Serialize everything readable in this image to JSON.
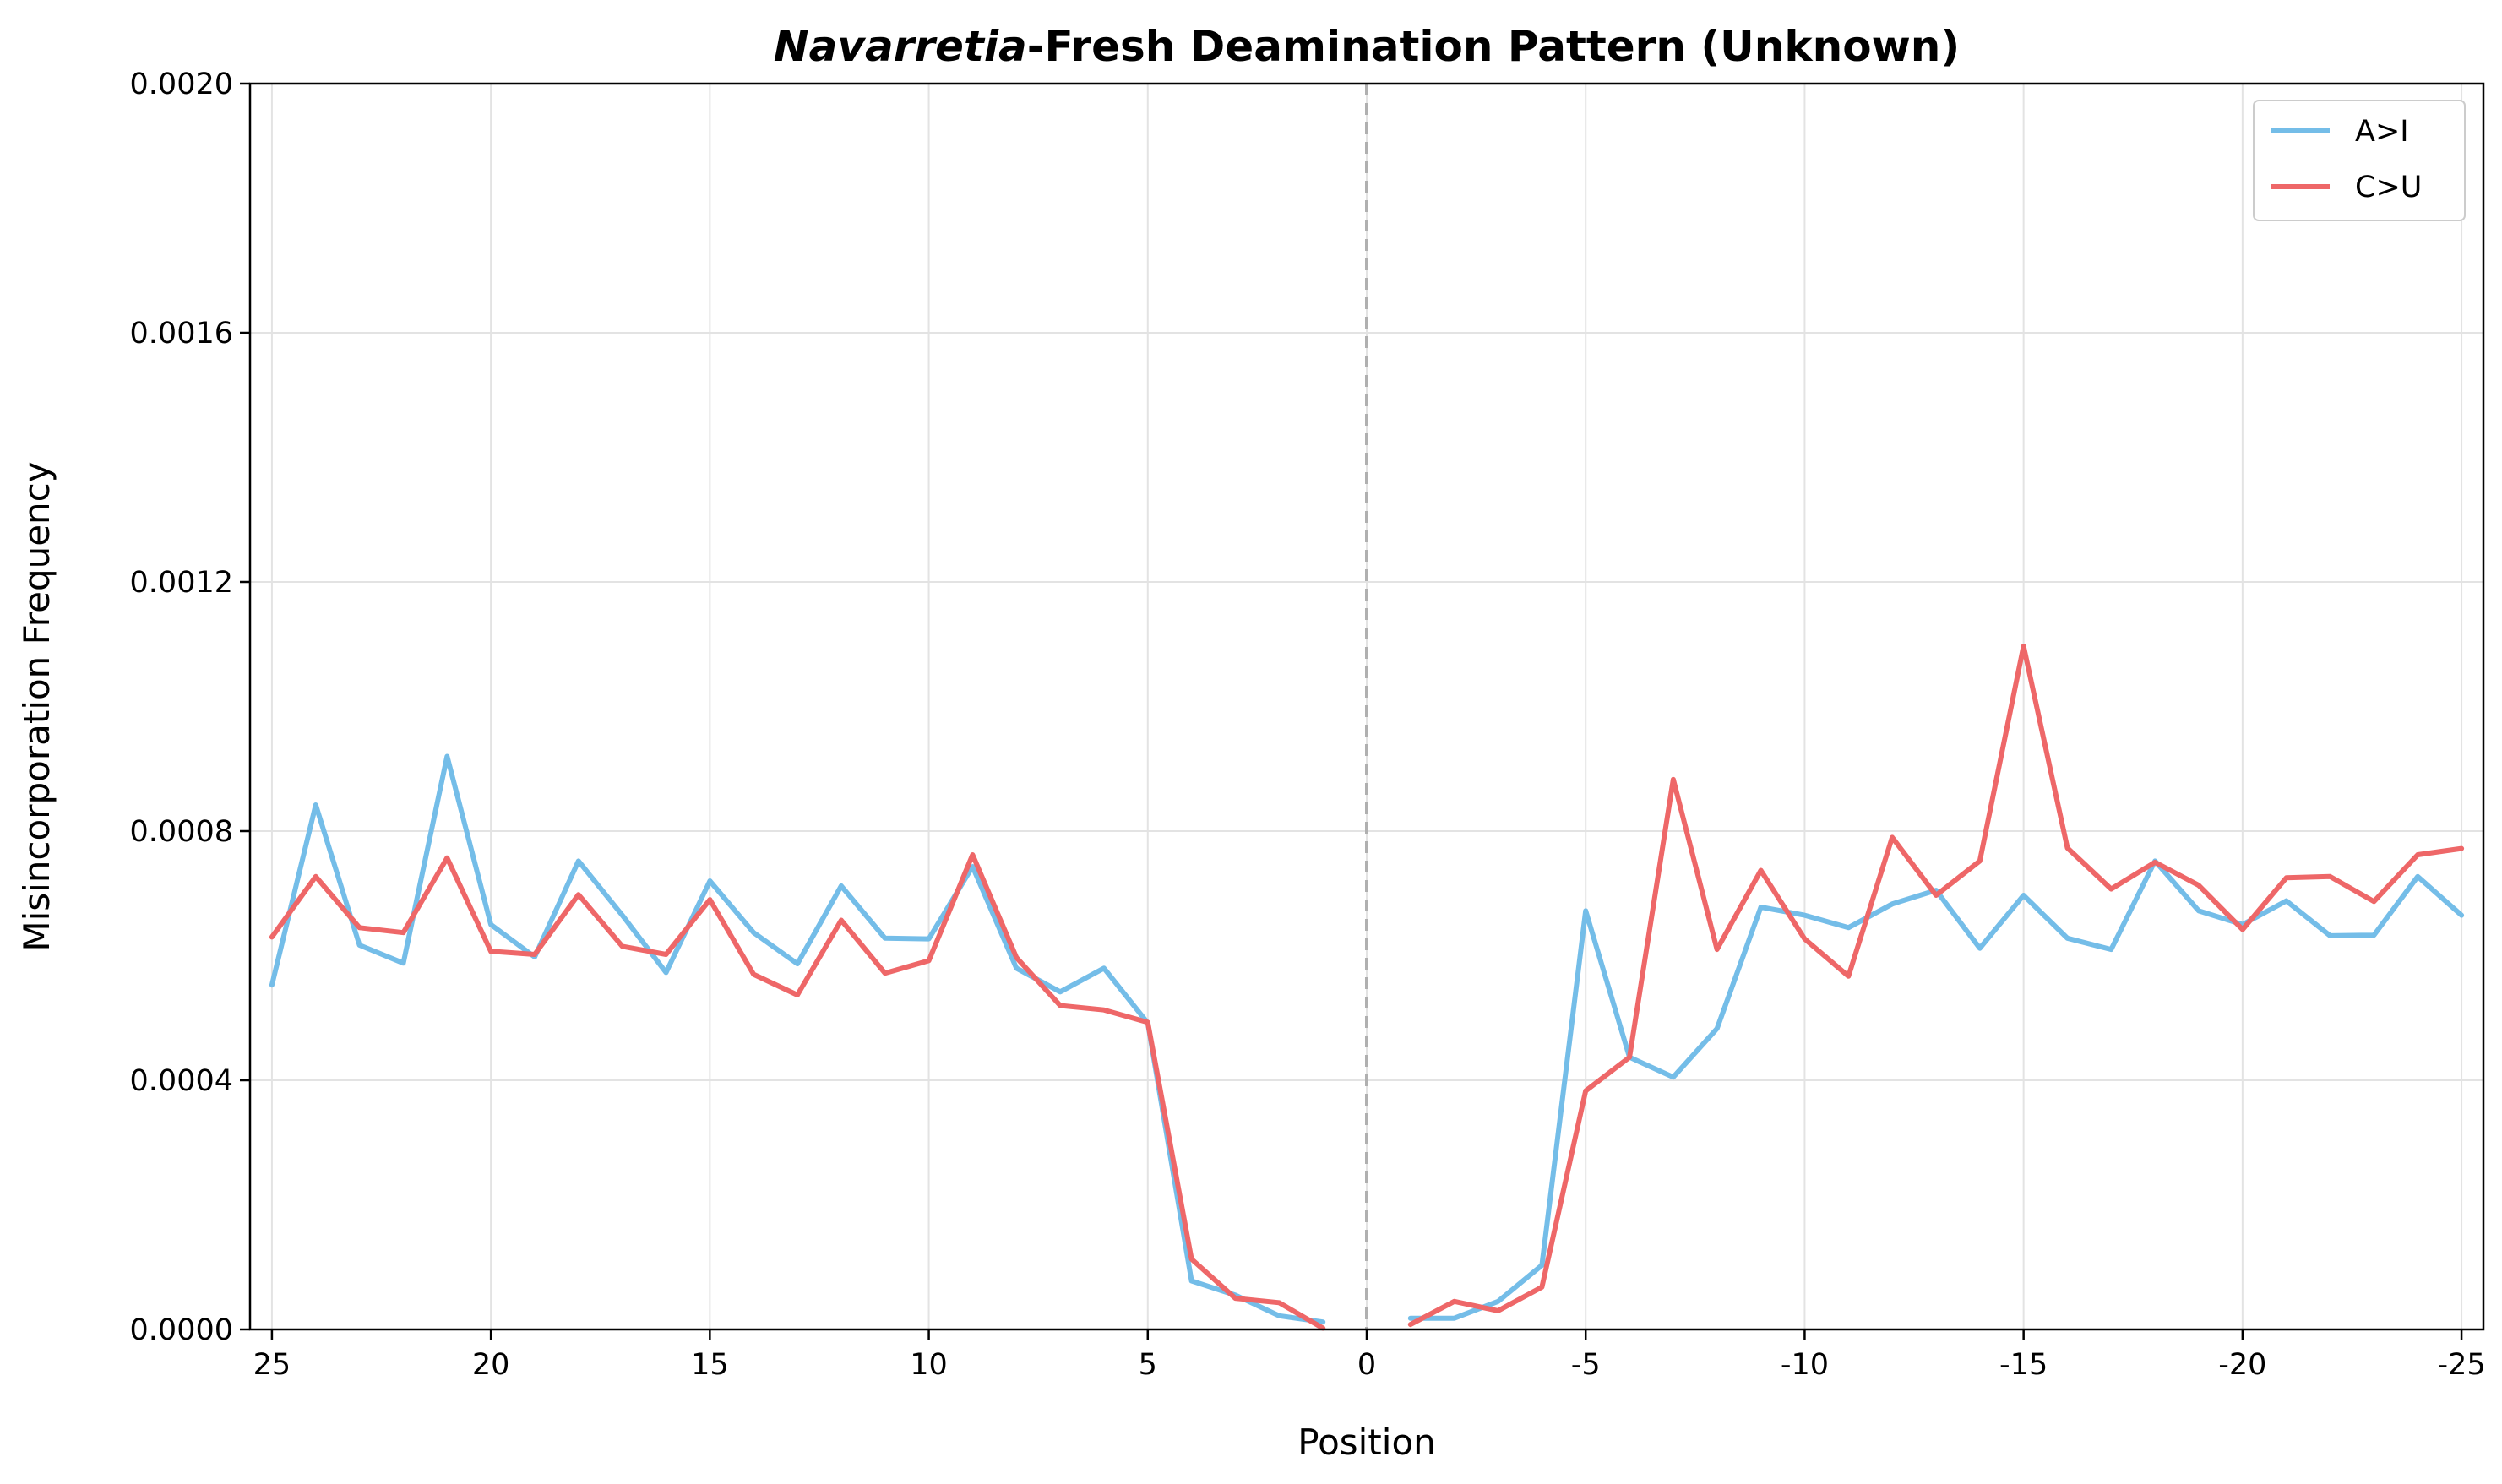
{
  "chart_data": {
    "type": "line",
    "title_italic": "Navarretia",
    "title_rest": "-Fresh Deamination Pattern (Unknown)",
    "xlabel": "Position",
    "ylabel": "Misincorporation Frequency",
    "ylim": [
      0,
      0.002
    ],
    "xlim": [
      25.5,
      -25.5
    ],
    "y_ticks": [
      "0.0000",
      "0.0004",
      "0.0008",
      "0.0012",
      "0.0016",
      "0.0020"
    ],
    "y_tick_values": [
      0,
      0.0004,
      0.0008,
      0.0012,
      0.0016,
      0.002
    ],
    "x_ticks": [
      "25",
      "20",
      "15",
      "10",
      "5",
      "0",
      "-5",
      "-10",
      "-15",
      "-20",
      "-25"
    ],
    "x_tick_values": [
      25,
      20,
      15,
      10,
      5,
      0,
      -5,
      -10,
      -15,
      -20,
      -25
    ],
    "grid": true,
    "legend_position": "top-right",
    "divider_at": 0,
    "segments": [
      {
        "x": [
          25,
          24,
          23,
          22,
          21,
          20,
          19,
          18,
          17,
          16,
          15,
          14,
          13,
          12,
          11,
          10,
          9,
          8,
          7,
          6,
          5,
          4,
          3,
          2,
          1
        ]
      },
      {
        "x": [
          -1,
          -2,
          -3,
          -4,
          -5,
          -6,
          -7,
          -8,
          -9,
          -10,
          -11,
          -12,
          -13,
          -14,
          -15,
          -16,
          -17,
          -18,
          -19,
          -20,
          -21,
          -22,
          -23,
          -24,
          -25
        ]
      }
    ],
    "series": [
      {
        "name": "A>I",
        "color": "#74bde8",
        "segments": [
          [
            0.000553,
            0.000842,
            0.000617,
            0.000588,
            0.00092,
            0.00065,
            0.000598,
            0.000752,
            0.000665,
            0.000573,
            0.00072,
            0.000637,
            0.000587,
            0.000712,
            0.000628,
            0.000627,
            0.000743,
            0.00058,
            0.000542,
            0.00058,
            0.000492,
            7.8e-05,
            5.5e-05,
            2.2e-05,
            1.2e-05
          ],
          [
            1.8e-05,
            1.8e-05,
            4.5e-05,
            0.000103,
            0.000672,
            0.000437,
            0.000405,
            0.000483,
            0.000678,
            0.000665,
            0.000645,
            0.000683,
            0.000705,
            0.000612,
            0.000697,
            0.000628,
            0.00061,
            0.000752,
            0.000672,
            0.00065,
            0.000688,
            0.000632,
            0.000633,
            0.000727,
            0.000665
          ]
        ]
      },
      {
        "name": "C>U",
        "color": "#ee6768",
        "segments": [
          [
            0.00063,
            0.000727,
            0.000645,
            0.000637,
            0.000757,
            0.000607,
            0.000602,
            0.000698,
            0.000615,
            0.000602,
            0.00069,
            0.00057,
            0.000537,
            0.000657,
            0.000572,
            0.000592,
            0.000762,
            0.000597,
            0.00052,
            0.000513,
            0.000493,
            0.000113,
            5e-05,
            4.3e-05,
            2e-06
          ],
          [
            8e-06,
            4.5e-05,
            3e-05,
            6.8e-05,
            0.000383,
            0.000437,
            0.000883,
            0.00061,
            0.000737,
            0.000627,
            0.000567,
            0.00079,
            0.000697,
            0.000752,
            0.001097,
            0.000773,
            0.000707,
            0.00075,
            0.000713,
            0.000642,
            0.000725,
            0.000727,
            0.000687,
            0.000762,
            0.000772
          ]
        ]
      }
    ]
  }
}
